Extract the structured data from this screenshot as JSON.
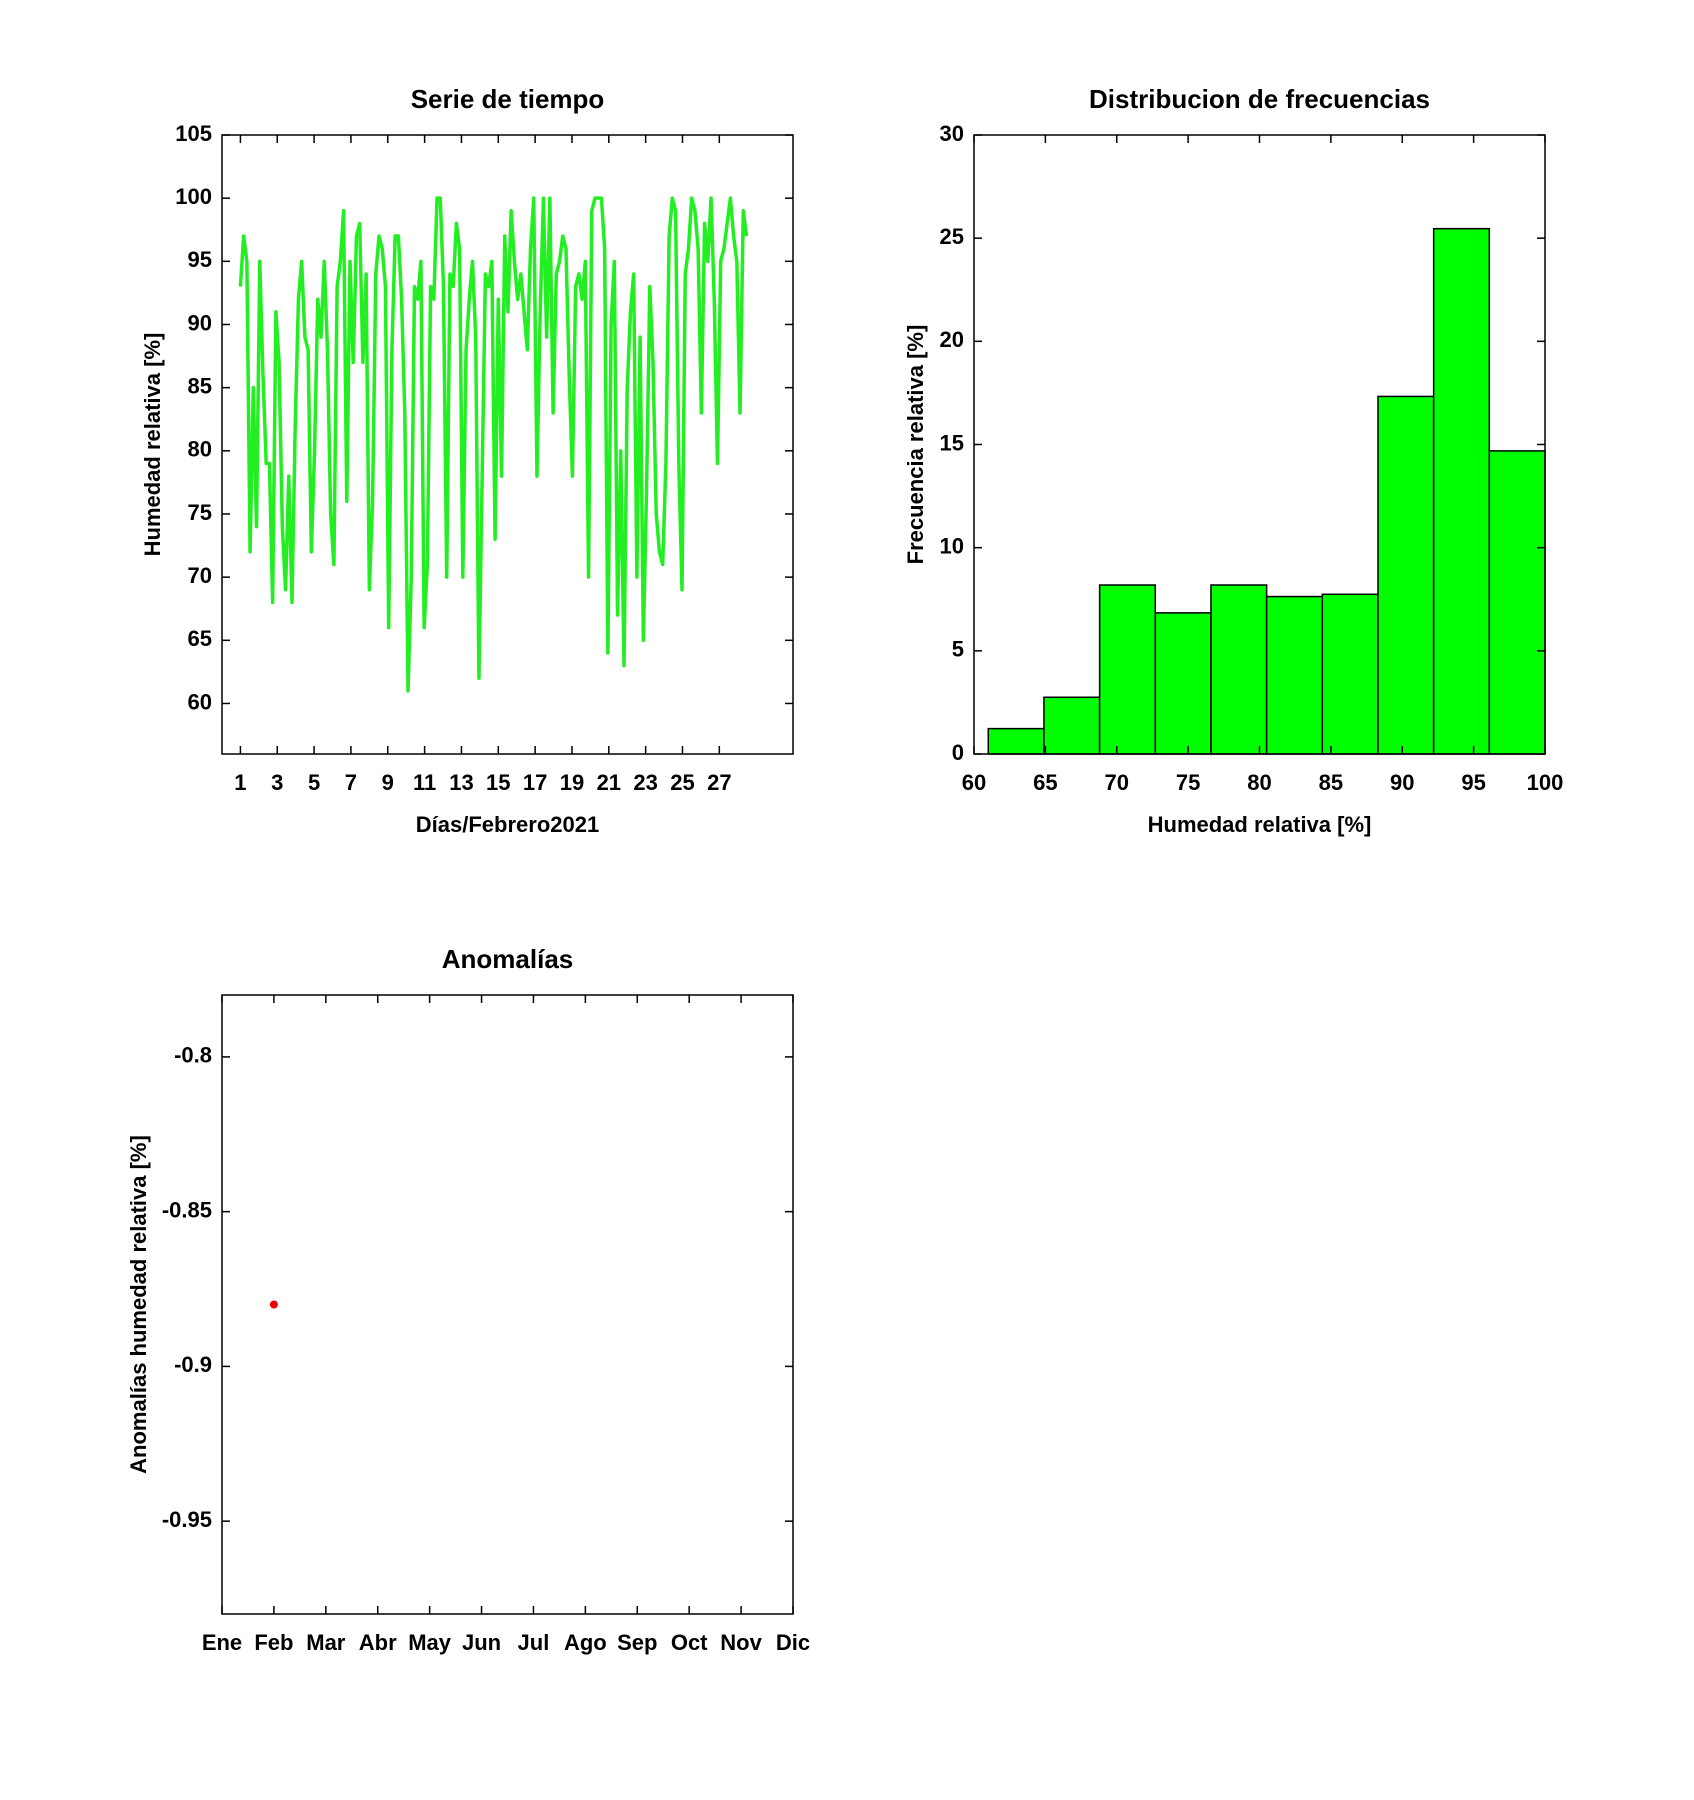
{
  "chart_data": [
    {
      "type": "line",
      "title": "Serie de tiempo",
      "xlabel": "Días/Febrero2021",
      "ylabel": "Humedad relativa [%]",
      "color": "#22ee22",
      "xlim": [
        0,
        31
      ],
      "xticks": [
        1,
        3,
        5,
        7,
        9,
        11,
        13,
        15,
        17,
        19,
        21,
        23,
        25,
        27
      ],
      "ylim": [
        56,
        105
      ],
      "yticks": [
        60,
        65,
        70,
        75,
        80,
        85,
        90,
        95,
        100,
        105
      ],
      "x": [
        1,
        1.175,
        1.35,
        1.525,
        1.7,
        1.875,
        2.05,
        2.225,
        2.4,
        2.575,
        2.75,
        2.925,
        3.1,
        3.275,
        3.45,
        3.625,
        3.8,
        3.975,
        4.15,
        4.325,
        4.5,
        4.675,
        4.85,
        5.025,
        5.2,
        5.375,
        5.55,
        5.725,
        5.9,
        6.075,
        6.25,
        6.425,
        6.6,
        6.775,
        6.95,
        7.125,
        7.3,
        7.475,
        7.65,
        7.825,
        8,
        8.175,
        8.35,
        8.525,
        8.7,
        8.875,
        9.05,
        9.225,
        9.4,
        9.575,
        9.75,
        9.925,
        10.1,
        10.275,
        10.45,
        10.625,
        10.8,
        10.975,
        11.15,
        11.325,
        11.5,
        11.675,
        11.85,
        12.025,
        12.2,
        12.375,
        12.55,
        12.725,
        12.9,
        13.075,
        13.25,
        13.425,
        13.6,
        13.775,
        13.95,
        14.125,
        14.3,
        14.475,
        14.65,
        14.825,
        15,
        15.175,
        15.35,
        15.525,
        15.7,
        15.875,
        16.05,
        16.225,
        16.4,
        16.575,
        16.75,
        16.925,
        17.1,
        17.275,
        17.45,
        17.625,
        17.8,
        17.975,
        18.15,
        18.325,
        18.5,
        18.675,
        18.85,
        19.025,
        19.2,
        19.375,
        19.55,
        19.725,
        19.9,
        20.075,
        20.25,
        20.425,
        20.6,
        20.775,
        20.95,
        21.125,
        21.3,
        21.475,
        21.65,
        21.825,
        22,
        22.175,
        22.35,
        22.525,
        22.7,
        22.875,
        23.05,
        23.225,
        23.4,
        23.575,
        23.75,
        23.925,
        24.1,
        24.275,
        24.45,
        24.625,
        24.8,
        24.975,
        25.15,
        25.325,
        25.5,
        25.675,
        25.85,
        26.025,
        26.2,
        26.375,
        26.55,
        26.725,
        26.9,
        27.075,
        27.25,
        27.425,
        27.6,
        27.775,
        27.95,
        28.125,
        28.3,
        28.475
      ],
      "values": [
        93,
        97,
        95,
        72,
        85,
        74,
        95,
        86,
        79,
        79,
        68,
        91,
        87,
        74,
        69,
        78,
        68,
        82,
        92,
        95,
        89,
        88,
        72,
        80,
        92,
        89,
        95,
        88,
        75,
        71,
        93,
        95,
        99,
        76,
        95,
        87,
        97,
        98,
        87,
        94,
        69,
        76,
        94,
        97,
        96,
        93,
        66,
        88,
        97,
        97,
        92,
        83,
        61,
        70,
        93,
        92,
        95,
        66,
        71,
        93,
        92,
        100,
        100,
        93,
        70,
        94,
        93,
        98,
        96,
        70,
        88,
        92,
        95,
        89,
        62,
        78,
        94,
        93,
        95,
        73,
        92,
        78,
        97,
        91,
        99,
        95,
        92,
        94,
        91,
        88,
        96,
        100,
        78,
        91,
        100,
        89,
        100,
        83,
        94,
        95,
        97,
        96,
        86,
        78,
        93,
        94,
        92,
        95,
        70,
        99,
        100,
        100,
        100,
        96,
        64,
        90,
        95,
        67,
        80,
        63,
        85,
        91,
        94,
        70,
        89,
        65,
        77,
        93,
        87,
        75,
        72,
        71,
        79,
        97,
        100,
        99,
        79,
        69,
        94,
        96,
        100,
        99,
        96,
        83,
        98,
        95,
        100,
        92,
        79,
        95,
        96,
        98,
        100,
        97,
        95,
        83,
        99,
        97
      ]
    },
    {
      "type": "histogram",
      "title": "Distribucion de frecuencias",
      "xlabel": "Humedad relativa [%]",
      "ylabel": "Frecuencia relativa [%]",
      "color": "#00ff00",
      "xlim": [
        60,
        100
      ],
      "xticks": [
        60,
        65,
        70,
        75,
        80,
        85,
        90,
        95,
        100
      ],
      "ylim": [
        0,
        30
      ],
      "yticks": [
        0,
        5,
        10,
        15,
        20,
        25,
        30
      ],
      "bins": [
        61,
        64.9,
        68.8,
        72.7,
        76.6,
        80.5,
        84.4,
        88.3,
        92.2,
        96.1,
        100
      ],
      "values": [
        1.23,
        2.75,
        8.19,
        6.84,
        8.19,
        7.63,
        7.74,
        17.33,
        25.46,
        14.69
      ]
    },
    {
      "type": "scatter",
      "title": "Anomalías",
      "ylabel": "Anomalías humedad relativa [%]",
      "color": "#ee0000",
      "categories": [
        "Ene",
        "Feb",
        "Mar",
        "Abr",
        "May",
        "Jun",
        "Jul",
        "Ago",
        "Sep",
        "Oct",
        "Nov",
        "Dic"
      ],
      "values": [
        null,
        -0.88,
        null,
        null,
        null,
        null,
        null,
        null,
        null,
        null,
        null,
        null
      ],
      "ylim": [
        -0.98,
        -0.78
      ],
      "yticks": [
        -0.95,
        -0.9,
        -0.85,
        -0.8
      ]
    }
  ]
}
